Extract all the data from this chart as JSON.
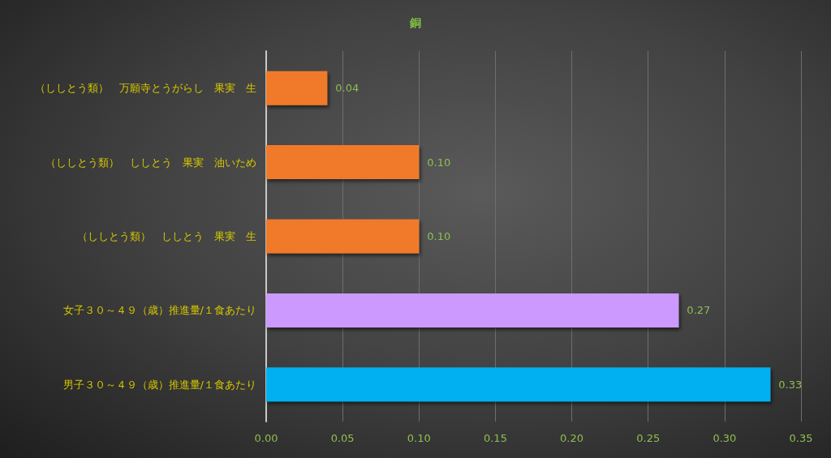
{
  "chart_data": {
    "type": "bar",
    "orientation": "horizontal",
    "title": "銅",
    "categories": [
      "（ししとう類）　万願寺とうがらし　果実　生",
      "（ししとう類）　ししとう　果実　油いため",
      "（ししとう類）　ししとう　果実　生",
      "女子３０～４９（歳）推進量/１食あたり",
      "男子３０～４９（歳）推進量/１食あたり"
    ],
    "values": [
      0.04,
      0.1,
      0.1,
      0.27,
      0.33
    ],
    "colors": [
      "#f07a2a",
      "#f07a2a",
      "#f07a2a",
      "#cc99ff",
      "#00b0f0"
    ],
    "value_labels": [
      "0.04",
      "0.10",
      "0.10",
      "0.27",
      "0.33"
    ],
    "xlim": [
      0,
      0.35
    ],
    "xticks": [
      {
        "value": 0,
        "label": "0.00"
      },
      0.05,
      {
        "value": 0.1,
        "label": "0.10"
      },
      0.15,
      {
        "value": 0.2,
        "label": "0.20"
      },
      0.25,
      {
        "value": 0.3,
        "label": "0.30"
      },
      0.35
    ],
    "grid": "x"
  }
}
